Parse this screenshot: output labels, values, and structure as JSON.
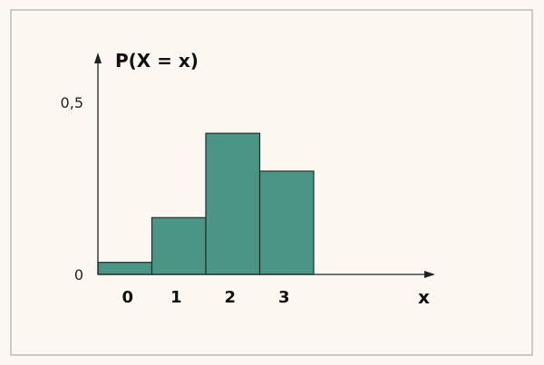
{
  "chart_data": {
    "type": "bar",
    "ylabel": "P(X = x)",
    "xlabel": "x",
    "categories": [
      "0",
      "1",
      "2",
      "3"
    ],
    "values": [
      0.035,
      0.165,
      0.41,
      0.3
    ],
    "y_ticks": [
      {
        "value": 0,
        "label": "0"
      },
      {
        "value": 0.5,
        "label": "0,5"
      }
    ],
    "ylim": [
      0,
      0.62
    ],
    "grid": false,
    "colors": {
      "bar": "#4a9585",
      "bar_edge": "#1f2f2b",
      "axis": "#222222",
      "frame": "#bcbcbc",
      "background": "#fcf8f1"
    }
  }
}
